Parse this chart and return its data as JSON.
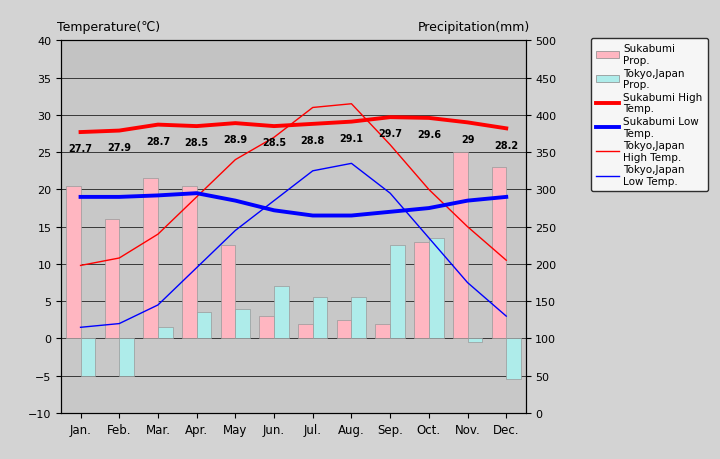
{
  "months": [
    "Jan.",
    "Feb.",
    "Mar.",
    "Apr.",
    "May",
    "Jun.",
    "Jul.",
    "Aug.",
    "Sep.",
    "Oct.",
    "Nov.",
    "Dec."
  ],
  "sukabumi_high": [
    27.7,
    27.9,
    28.7,
    28.5,
    28.9,
    28.5,
    28.8,
    29.1,
    29.7,
    29.6,
    29.0,
    28.2
  ],
  "sukabumi_low": [
    19.0,
    19.0,
    19.2,
    19.5,
    18.5,
    17.2,
    16.5,
    16.5,
    17.0,
    17.5,
    18.5,
    19.0
  ],
  "tokyo_high": [
    9.8,
    10.8,
    14.0,
    19.0,
    24.0,
    27.0,
    31.0,
    31.5,
    26.0,
    20.0,
    15.0,
    10.5
  ],
  "tokyo_low": [
    1.5,
    2.0,
    4.5,
    9.5,
    14.5,
    18.5,
    22.5,
    23.5,
    19.5,
    13.5,
    7.5,
    3.0
  ],
  "sukabumi_high_labels": [
    "27.7",
    "27.9",
    "28.7",
    "28.5",
    "28.9",
    "28.5",
    "28.8",
    "29.1",
    "29.7",
    "29.6",
    "29",
    "28.2"
  ],
  "suka_bar_temp": [
    20.5,
    16.0,
    21.5,
    20.5,
    12.5,
    3.0,
    2.0,
    2.5,
    2.0,
    13.0,
    25.0,
    23.0
  ],
  "tokyo_bar_temp": [
    -5.0,
    -5.0,
    1.5,
    3.5,
    4.0,
    7.0,
    5.5,
    5.5,
    12.5,
    13.5,
    -0.5,
    -5.5
  ],
  "sukabumi_precip_color": "#FFB6C1",
  "tokyo_precip_color": "#AEECEA",
  "ylim_temp": [
    -10,
    40
  ],
  "ylim_precip": [
    0,
    500
  ],
  "temp_range": 50,
  "precip_range": 500,
  "temp_min": -10,
  "plot_bg": "#C8C8C8",
  "fig_bg": "#D3D3D3",
  "title_left": "Temperature(℃)",
  "title_right": "Precipitation(mm)"
}
